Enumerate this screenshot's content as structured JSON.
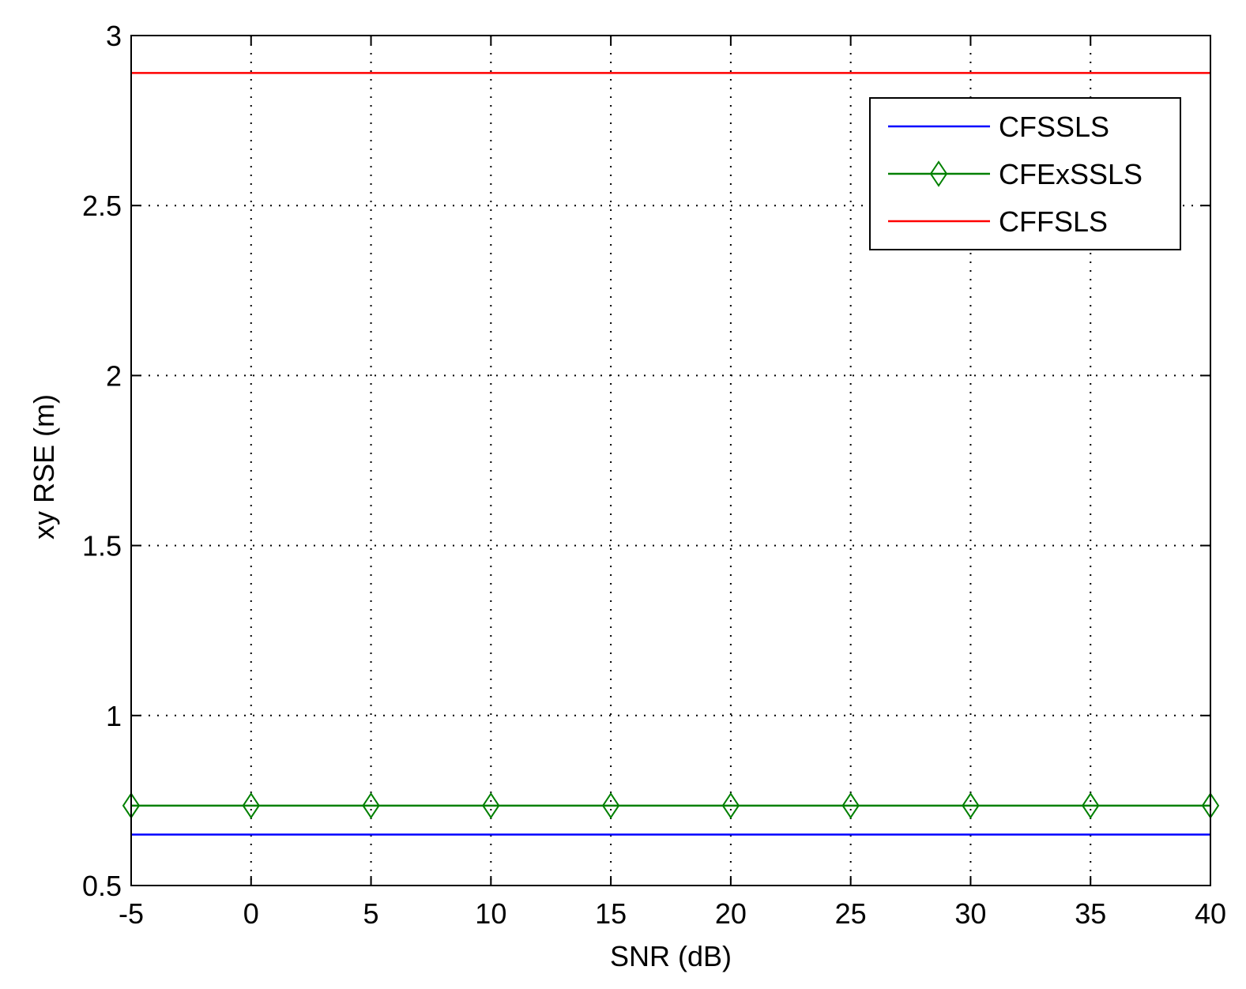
{
  "chart_data": {
    "type": "line",
    "title": "",
    "xlabel": "SNR (dB)",
    "ylabel": "xy RSE (m)",
    "xlim": [
      -5,
      40
    ],
    "ylim": [
      0.5,
      3
    ],
    "xticks": [
      -5,
      0,
      5,
      10,
      15,
      20,
      25,
      30,
      35,
      40
    ],
    "yticks": [
      0.5,
      1,
      1.5,
      2,
      2.5,
      3
    ],
    "xtick_labels": [
      "-5",
      "0",
      "5",
      "10",
      "15",
      "20",
      "25",
      "30",
      "35",
      "40"
    ],
    "ytick_labels": [
      "0.5",
      "1",
      "1.5",
      "2",
      "2.5",
      "3"
    ],
    "grid": true,
    "grid_style": "dotted",
    "legend_position": "top-right",
    "x": [
      -5,
      0,
      5,
      10,
      15,
      20,
      25,
      30,
      35,
      40
    ],
    "series": [
      {
        "name": "CFSSLS",
        "color": "#0000ff",
        "marker": "none",
        "values": [
          0.65,
          0.65,
          0.65,
          0.65,
          0.65,
          0.65,
          0.65,
          0.65,
          0.65,
          0.65
        ]
      },
      {
        "name": "CFExSSLS",
        "color": "#008000",
        "marker": "diamond",
        "values": [
          0.735,
          0.735,
          0.735,
          0.735,
          0.735,
          0.735,
          0.735,
          0.735,
          0.735,
          0.735
        ]
      },
      {
        "name": "CFFSLS",
        "color": "#ff0000",
        "marker": "none",
        "values": [
          2.89,
          2.89,
          2.89,
          2.89,
          2.89,
          2.89,
          2.89,
          2.89,
          2.89,
          2.89
        ]
      }
    ]
  }
}
